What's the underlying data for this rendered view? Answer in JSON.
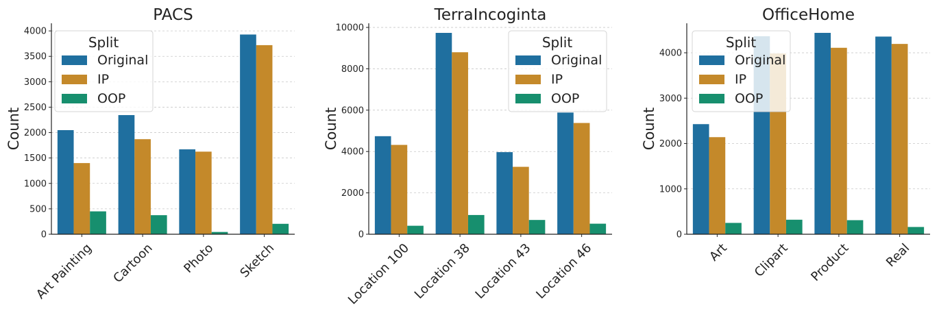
{
  "figure": {
    "series_names": [
      "Original",
      "IP",
      "OOP"
    ],
    "series_colors": [
      "#1f6f9f",
      "#c4892a",
      "#178f6e"
    ],
    "grid_color": "#c8c8c8"
  },
  "chart_data": [
    {
      "type": "bar",
      "title": "PACS",
      "xlabel": "",
      "ylabel": "Count",
      "categories": [
        "Art Painting",
        "Cartoon",
        "Photo",
        "Sketch"
      ],
      "series": [
        {
          "name": "Original",
          "values": [
            2048,
            2344,
            1670,
            3929
          ]
        },
        {
          "name": "IP",
          "values": [
            1400,
            1870,
            1625,
            3720
          ]
        },
        {
          "name": "OOP",
          "values": [
            450,
            375,
            45,
            205
          ]
        }
      ],
      "ylim": [
        0,
        4150
      ],
      "yticks": [
        0,
        500,
        1000,
        1500,
        2000,
        2500,
        3000,
        3500,
        4000
      ],
      "grid": "y-dashed",
      "legend": {
        "title": "Split",
        "placement": "upper-left"
      }
    },
    {
      "type": "bar",
      "title": "TerraIncoginta",
      "xlabel": "",
      "ylabel": "Count",
      "categories": [
        "Location 100",
        "Location 38",
        "Location 43",
        "Location 46"
      ],
      "series": [
        {
          "name": "Original",
          "values": [
            4741,
            9736,
            3970,
            5883
          ]
        },
        {
          "name": "IP",
          "values": [
            4320,
            8800,
            3260,
            5380
          ]
        },
        {
          "name": "OOP",
          "values": [
            410,
            930,
            690,
            510
          ]
        }
      ],
      "ylim": [
        0,
        10200
      ],
      "yticks": [
        0,
        2000,
        4000,
        6000,
        8000,
        10000
      ],
      "grid": "y-dashed",
      "legend": {
        "title": "Split",
        "placement": "upper-right"
      }
    },
    {
      "type": "bar",
      "title": "OfficeHome",
      "xlabel": "",
      "ylabel": "Count",
      "categories": [
        "Art",
        "Clipart",
        "Product",
        "Real"
      ],
      "series": [
        {
          "name": "Original",
          "values": [
            2427,
            4365,
            4439,
            4357
          ]
        },
        {
          "name": "IP",
          "values": [
            2140,
            3985,
            4110,
            4195
          ]
        },
        {
          "name": "OOP",
          "values": [
            250,
            320,
            310,
            160
          ]
        }
      ],
      "ylim": [
        0,
        4650
      ],
      "yticks": [
        0,
        1000,
        2000,
        3000,
        4000
      ],
      "grid": "y-dashed",
      "legend": {
        "title": "Split",
        "placement": "upper-left"
      }
    }
  ]
}
